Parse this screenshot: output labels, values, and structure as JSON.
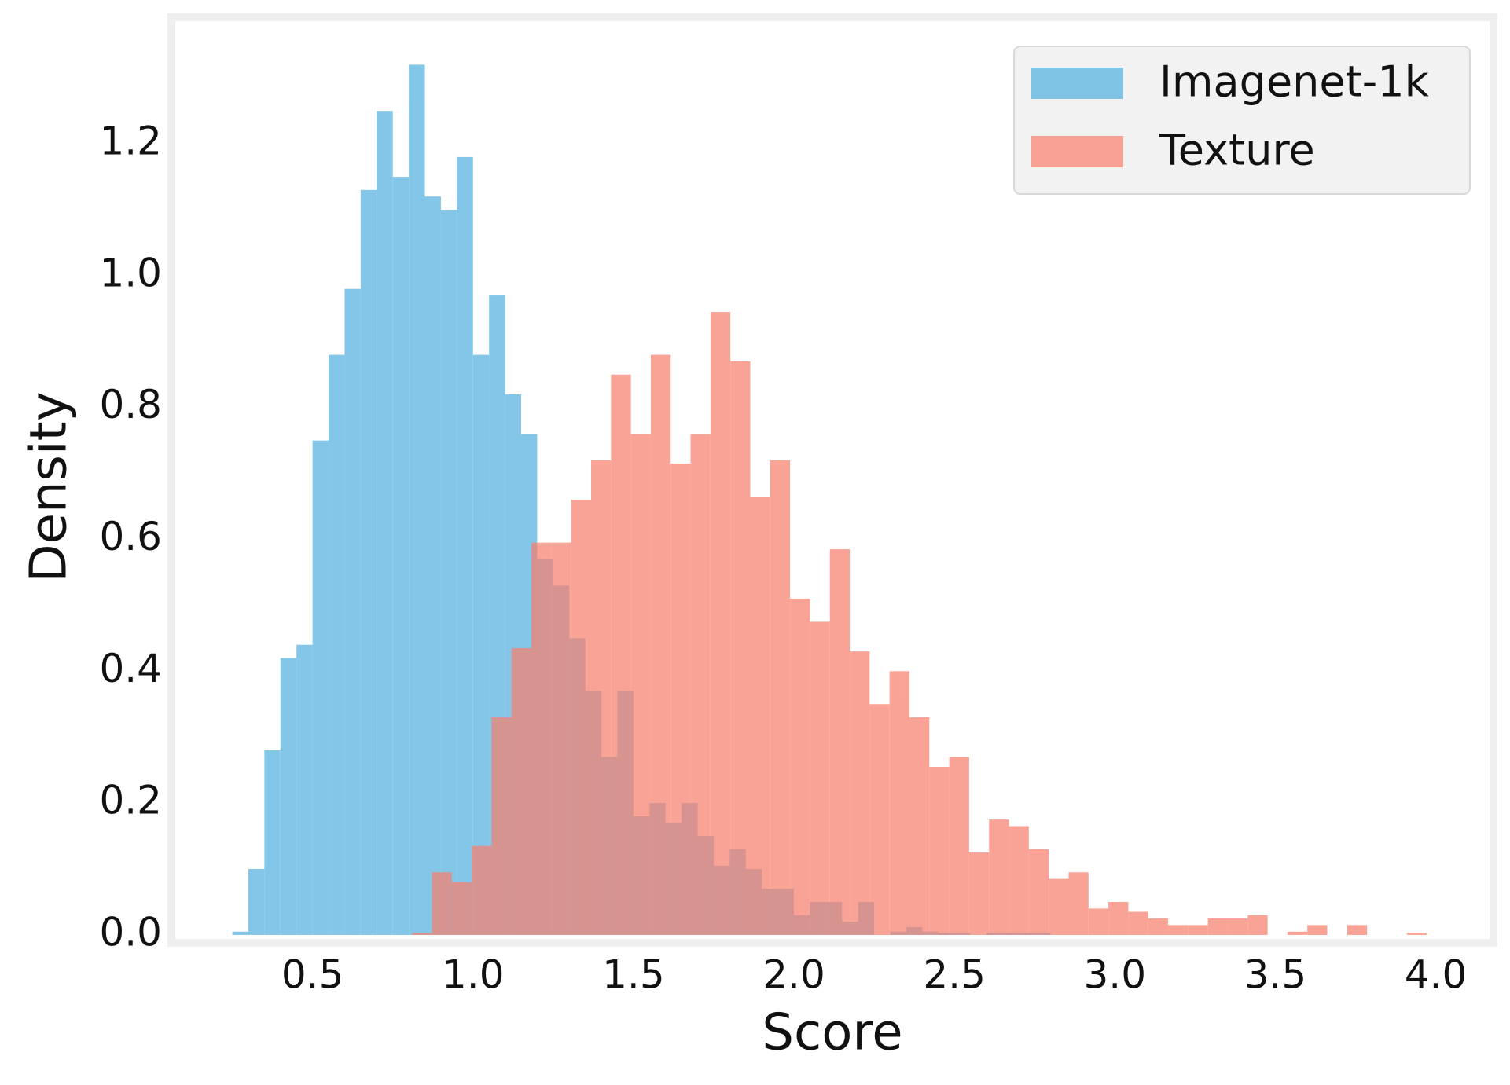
{
  "chart_data": {
    "type": "histogram",
    "xlabel": "Score",
    "ylabel": "Density",
    "xlim": [
      0.06,
      4.18
    ],
    "ylim": [
      -0.012,
      1.392
    ],
    "xticks": [
      0.5,
      {
        "value": 1.0,
        "label": "1.0"
      },
      1.5,
      {
        "value": 2.0,
        "label": "2.0"
      },
      2.5,
      {
        "value": 3.0,
        "label": "3.0"
      },
      3.5,
      {
        "value": 4.0,
        "label": "4.0"
      }
    ],
    "yticks": [
      {
        "value": 0.0,
        "label": "0.0"
      },
      0.2,
      0.4,
      0.6,
      0.8,
      {
        "value": 1.0,
        "label": "1.0"
      },
      1.2
    ],
    "grid": false,
    "legend": "upper right",
    "series": [
      {
        "name": "Imagenet-1k",
        "color": "#5ab4e0",
        "opacity": 0.75,
        "bins": [
          0.25,
          0.3,
          0.35,
          0.4,
          0.45,
          0.5,
          0.55,
          0.6,
          0.65,
          0.7,
          0.75,
          0.8,
          0.85,
          0.9,
          0.95,
          1.0,
          1.05,
          1.1,
          1.15,
          1.2,
          1.25,
          1.3,
          1.35,
          1.4,
          1.45,
          1.5,
          1.55,
          1.6,
          1.65,
          1.7,
          1.75,
          1.8,
          1.85,
          1.9,
          1.95,
          2.0,
          2.05,
          2.1,
          2.15,
          2.2,
          2.25,
          2.3,
          2.35,
          2.4,
          2.45,
          2.5,
          2.55,
          2.6,
          2.65,
          2.7,
          2.75,
          2.8
        ],
        "values": [
          0.005,
          0.1,
          0.28,
          0.42,
          0.44,
          0.75,
          0.88,
          0.98,
          1.13,
          1.25,
          1.15,
          1.32,
          1.12,
          1.1,
          1.18,
          0.88,
          0.97,
          0.82,
          0.76,
          0.57,
          0.53,
          0.45,
          0.37,
          0.27,
          0.37,
          0.18,
          0.2,
          0.17,
          0.2,
          0.15,
          0.105,
          0.13,
          0.1,
          0.07,
          0.07,
          0.03,
          0.05,
          0.05,
          0.02,
          0.05,
          0,
          0.005,
          0.012,
          0.005,
          0.003,
          0.003,
          0,
          0.003,
          0.003,
          0.003,
          0.003
        ]
      },
      {
        "name": "Texture",
        "color": "#f8806e",
        "opacity": 0.72,
        "bins": [
          0.81,
          0.872,
          0.934,
          0.996,
          1.058,
          1.12,
          1.182,
          1.244,
          1.306,
          1.368,
          1.43,
          1.492,
          1.554,
          1.616,
          1.678,
          1.74,
          1.802,
          1.864,
          1.926,
          1.988,
          2.05,
          2.112,
          2.174,
          2.236,
          2.298,
          2.36,
          2.422,
          2.484,
          2.546,
          2.608,
          2.67,
          2.732,
          2.794,
          2.856,
          2.918,
          2.98,
          3.042,
          3.104,
          3.166,
          3.228,
          3.29,
          3.352,
          3.414,
          3.476,
          3.538,
          3.6,
          3.662,
          3.724,
          3.786,
          3.848,
          3.91,
          3.972
        ],
        "values": [
          0.003,
          0.095,
          0.08,
          0.135,
          0.33,
          0.435,
          0.595,
          0.595,
          0.66,
          0.72,
          0.85,
          0.76,
          0.88,
          0.715,
          0.76,
          0.945,
          0.87,
          0.665,
          0.72,
          0.51,
          0.475,
          0.585,
          0.43,
          0.35,
          0.4,
          0.33,
          0.255,
          0.27,
          0.125,
          0.175,
          0.165,
          0.13,
          0.085,
          0.095,
          0.04,
          0.05,
          0.035,
          0.025,
          0.015,
          0.015,
          0.025,
          0.025,
          0.03,
          0,
          0.005,
          0.015,
          0,
          0.015,
          0,
          0,
          0.003
        ]
      }
    ]
  }
}
